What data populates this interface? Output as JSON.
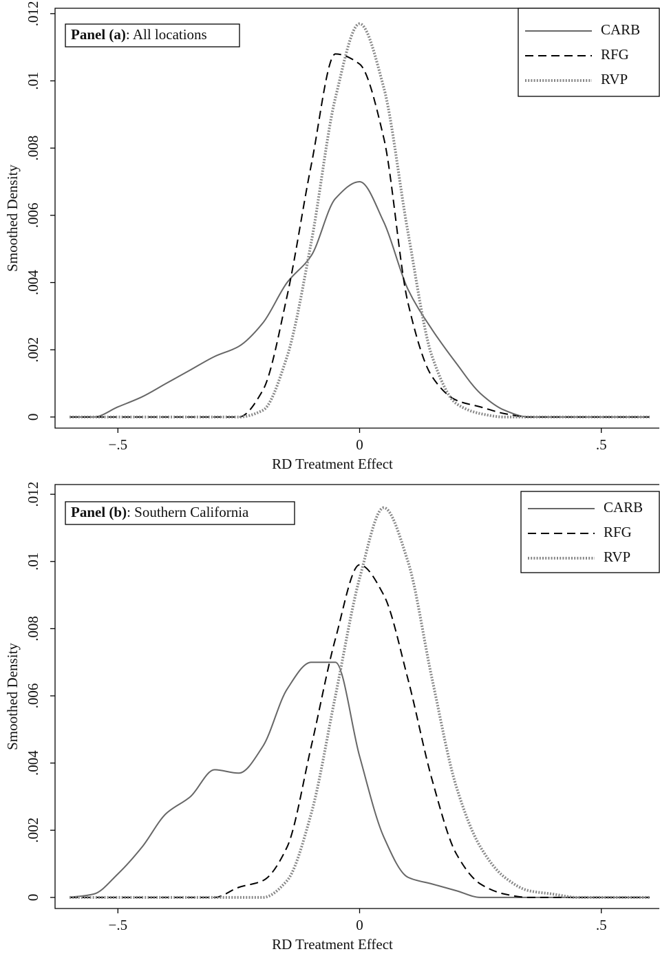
{
  "chart_data": [
    {
      "type": "line",
      "panel_label": {
        "bold": "Panel (a)",
        "text": ": All locations"
      },
      "xlabel": "RD Treatment Effect",
      "ylabel": "Smoothed Density",
      "x": [
        -0.6,
        -0.55,
        -0.5,
        -0.45,
        -0.4,
        -0.35,
        -0.3,
        -0.25,
        -0.2,
        -0.15,
        -0.1,
        -0.05,
        0,
        0.05,
        0.1,
        0.15,
        0.2,
        0.25,
        0.3,
        0.35,
        0.4,
        0.45,
        0.5,
        0.55,
        0.6
      ],
      "series": [
        {
          "name": "CARB",
          "color": "#666666",
          "dash": "solid",
          "values": [
            0,
            0,
            0.0003,
            0.0006,
            0.001,
            0.0014,
            0.0018,
            0.0021,
            0.0028,
            0.004,
            0.0048,
            0.0065,
            0.007,
            0.0058,
            0.0038,
            0.0026,
            0.0016,
            0.0007,
            0.0002,
            0,
            0,
            0,
            0,
            0,
            0
          ]
        },
        {
          "name": "RFG",
          "color": "#000000",
          "dash": "dash",
          "values": [
            0,
            0,
            0,
            0,
            0,
            0,
            0,
            0,
            0.0008,
            0.0036,
            0.0075,
            0.0108,
            0.0105,
            0.0083,
            0.0034,
            0.0012,
            0.0005,
            0.0003,
            0.0001,
            0,
            0,
            0,
            0,
            0,
            0
          ]
        },
        {
          "name": "RVP",
          "color": "#888888",
          "dash": "dot",
          "values": [
            0,
            0,
            0,
            0,
            0,
            0,
            0,
            0,
            0.0002,
            0.0018,
            0.0052,
            0.0095,
            0.0117,
            0.0098,
            0.0055,
            0.0018,
            0.0004,
            0.0001,
            0,
            0,
            0,
            0,
            0,
            0,
            0
          ]
        }
      ],
      "xlim": [
        -0.63,
        0.62
      ],
      "ylim": [
        -0.00033,
        0.01216
      ],
      "xticks": [
        {
          "value": -0.5,
          "label": "−.5"
        },
        0,
        {
          "value": 0.5,
          "label": ".5"
        }
      ],
      "yticks": [
        0,
        {
          "value": 0.002,
          "label": ".002"
        },
        {
          "value": 0.004,
          "label": ".004"
        },
        {
          "value": 0.006,
          "label": ".006"
        },
        {
          "value": 0.008,
          "label": ".008"
        },
        {
          "value": 0.01,
          "label": ".01"
        },
        {
          "value": 0.012,
          "label": ".012"
        }
      ],
      "legend": "upper right",
      "grid": false
    },
    {
      "type": "line",
      "panel_label": {
        "bold": "Panel (b)",
        "text": ": Southern California"
      },
      "xlabel": "RD Treatment Effect",
      "ylabel": "Smoothed Density",
      "x": [
        -0.6,
        -0.55,
        -0.5,
        -0.45,
        -0.4,
        -0.35,
        -0.3,
        -0.25,
        -0.2,
        -0.15,
        -0.1,
        -0.05,
        0,
        0.05,
        0.1,
        0.15,
        0.2,
        0.25,
        0.3,
        0.35,
        0.4,
        0.45,
        0.5,
        0.55,
        0.6
      ],
      "series": [
        {
          "name": "CARB",
          "color": "#666666",
          "dash": "solid",
          "values": [
            0,
            0.0001,
            0.0007,
            0.0015,
            0.0025,
            0.003,
            0.0038,
            0.0037,
            0.0045,
            0.0062,
            0.007,
            0.007,
            0.0042,
            0.0018,
            0.0006,
            0.0004,
            0.0002,
            0,
            0,
            0,
            0,
            0,
            0,
            0,
            0
          ]
        },
        {
          "name": "RFG",
          "color": "#000000",
          "dash": "dash",
          "values": [
            0,
            0,
            0,
            0,
            0,
            0,
            0,
            0.0003,
            0.0005,
            0.0015,
            0.0045,
            0.0077,
            0.0099,
            0.009,
            0.0065,
            0.0035,
            0.0013,
            0.0004,
            0.0001,
            0,
            0,
            0,
            0,
            0,
            0
          ]
        },
        {
          "name": "RVP",
          "color": "#888888",
          "dash": "dot",
          "values": [
            0,
            0,
            0,
            0,
            0,
            0,
            0,
            0,
            0,
            0.0005,
            0.0025,
            0.006,
            0.0095,
            0.0116,
            0.01,
            0.0065,
            0.0033,
            0.0015,
            0.0006,
            0.0002,
            0.0001,
            0,
            0,
            0,
            0
          ]
        }
      ],
      "xlim": [
        -0.63,
        0.62
      ],
      "ylim": [
        -0.00033,
        0.01229
      ],
      "xticks": [
        {
          "value": -0.5,
          "label": "−.5"
        },
        0,
        {
          "value": 0.5,
          "label": ".5"
        }
      ],
      "yticks": [
        0,
        {
          "value": 0.002,
          "label": ".002"
        },
        {
          "value": 0.004,
          "label": ".004"
        },
        {
          "value": 0.006,
          "label": ".006"
        },
        {
          "value": 0.008,
          "label": ".008"
        },
        {
          "value": 0.01,
          "label": ".01"
        },
        {
          "value": 0.012,
          "label": ".012"
        }
      ],
      "legend": "upper right",
      "grid": false
    }
  ]
}
